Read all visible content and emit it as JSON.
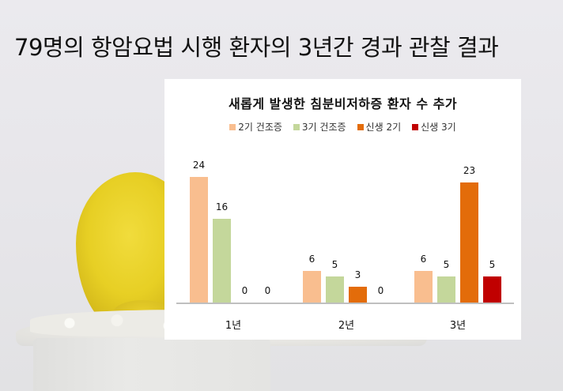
{
  "page": {
    "title": "79명의 항암요법 시행 환자의 3년간 경과 관찰 결과"
  },
  "chart_data": {
    "type": "bar",
    "title": "새롭게 발생한 침분비저하증 환자 수 추가",
    "xlabel": "",
    "ylabel": "",
    "categories": [
      "1년",
      "2년",
      "3년"
    ],
    "series": [
      {
        "name": "2기 건조증",
        "color": "#f9be8f",
        "values": [
          24,
          6,
          6
        ]
      },
      {
        "name": "3기 건조증",
        "color": "#c4d79b",
        "values": [
          16,
          5,
          5
        ]
      },
      {
        "name": "신생 2기",
        "color": "#e36c0a",
        "values": [
          0,
          3,
          23
        ]
      },
      {
        "name": "신생 3기",
        "color": "#c00000",
        "values": [
          0,
          0,
          5
        ]
      }
    ],
    "ylim": [
      0,
      25
    ],
    "grid": false,
    "legend_position": "top",
    "data_labels": true
  }
}
